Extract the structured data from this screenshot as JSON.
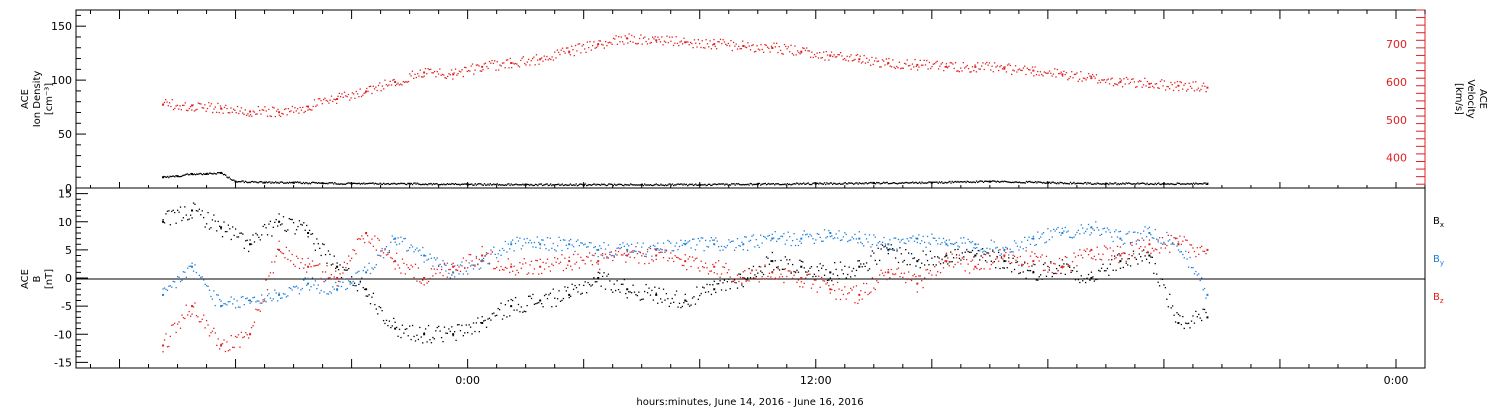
{
  "chart_data": [
    {
      "type": "scatter",
      "panel": "top",
      "ylabel_left": [
        "ACE",
        "Ion Density",
        "[cm⁻³]"
      ],
      "ylabel_right": [
        "ACE",
        "Velocity",
        "[km/s]"
      ],
      "ylim_left": [
        0,
        165
      ],
      "ylim_right": [
        320,
        790
      ],
      "yticks_left": [
        0,
        50,
        100,
        150
      ],
      "yticks_right": [
        400,
        500,
        600,
        700
      ],
      "series": [
        {
          "axis": "left",
          "color": "#000000",
          "x_hours": [
            -10.5,
            -10,
            -9.5,
            -9,
            -8.5,
            -8,
            -7,
            -6,
            -5,
            -4,
            -2,
            0,
            2,
            4,
            6,
            8,
            10,
            12,
            14,
            16,
            18,
            20,
            22,
            24,
            25.5
          ],
          "values": [
            10,
            11,
            13,
            13,
            14,
            6,
            5,
            5,
            4.5,
            4,
            4,
            3.5,
            3,
            3,
            3,
            3,
            3.5,
            4,
            4.5,
            5,
            6,
            5,
            4,
            4,
            4
          ]
        },
        {
          "axis": "right",
          "color": "#e02020",
          "x_hours": [
            -10.5,
            -9.5,
            -8.5,
            -7.5,
            -6.5,
            -5.5,
            -4.5,
            -3.5,
            -2.5,
            -1.5,
            -0.5,
            0.5,
            1.5,
            2.5,
            3.5,
            4.5,
            5.5,
            6.5,
            7.5,
            8.5,
            9.5,
            10.5,
            11.5,
            12.5,
            13.5,
            14.5,
            15.5,
            16.5,
            17.5,
            18.5,
            19.5,
            20.5,
            21.5,
            22.5,
            23.5,
            24.5,
            25.5
          ],
          "values": [
            540,
            538,
            530,
            522,
            520,
            535,
            555,
            575,
            600,
            625,
            620,
            640,
            650,
            660,
            680,
            700,
            715,
            710,
            705,
            700,
            695,
            690,
            680,
            670,
            660,
            650,
            645,
            640,
            640,
            635,
            630,
            620,
            610,
            600,
            595,
            590,
            585
          ]
        }
      ]
    },
    {
      "type": "scatter",
      "panel": "bottom",
      "ylabel_left": [
        "ACE",
        "B",
        "[nT]"
      ],
      "ylim": [
        -16,
        16
      ],
      "yticks": [
        -15,
        -10,
        -5,
        0,
        5,
        10,
        15
      ],
      "legend": [
        "Bx",
        "By",
        "Bz"
      ],
      "legend_placement": "right",
      "series": [
        {
          "name": "Bx",
          "color": "#000000",
          "x_hours": [
            -10.5,
            -9.5,
            -8.5,
            -7.5,
            -6.5,
            -5.5,
            -4.5,
            -3.5,
            -2.5,
            -1.5,
            -0.5,
            0.5,
            1.5,
            2.5,
            3.5,
            4.5,
            5.5,
            6.5,
            7.5,
            8.5,
            9.5,
            10.5,
            11.5,
            12.5,
            13.5,
            14.5,
            15.5,
            16.5,
            17.5,
            18.5,
            19.5,
            20.5,
            21.5,
            22.5,
            23.5,
            24.5,
            25.5
          ],
          "values": [
            10,
            12,
            9,
            6,
            10,
            8,
            2,
            -2,
            -9,
            -10,
            -10,
            -8,
            -5,
            -4,
            -3,
            0,
            -2,
            -3,
            -4,
            -2,
            0,
            3,
            2,
            1,
            2,
            5,
            3,
            4,
            4,
            3,
            1,
            2,
            0,
            3,
            4,
            -8,
            -7
          ]
        },
        {
          "name": "By",
          "color": "#1f7fd8",
          "x_hours": [
            -10.5,
            -9.5,
            -8.5,
            -7.5,
            -6.5,
            -5.5,
            -4.5,
            -3.5,
            -2.5,
            -1.5,
            -0.5,
            0.5,
            1.5,
            2.5,
            3.5,
            4.5,
            5.5,
            6.5,
            7.5,
            8.5,
            9.5,
            10.5,
            11.5,
            12.5,
            13.5,
            14.5,
            15.5,
            16.5,
            17.5,
            18.5,
            19.5,
            20.5,
            21.5,
            22.5,
            23.5,
            24.5,
            25.5
          ],
          "values": [
            -3,
            2,
            -5,
            -4,
            -3,
            -1,
            -2,
            1,
            7,
            4,
            1,
            3,
            6,
            6,
            6,
            5,
            5,
            5,
            6,
            6,
            6,
            7,
            7,
            8,
            7,
            6,
            7,
            6,
            6,
            5,
            7,
            8,
            9,
            7,
            8,
            6,
            -3
          ]
        },
        {
          "name": "Bz",
          "color": "#e02020",
          "x_hours": [
            -10.5,
            -9.5,
            -8.5,
            -7.5,
            -6.5,
            -5.5,
            -4.5,
            -3.5,
            -2.5,
            -1.5,
            -0.5,
            0.5,
            1.5,
            2.5,
            3.5,
            4.5,
            5.5,
            6.5,
            7.5,
            8.5,
            9.5,
            10.5,
            11.5,
            12.5,
            13.5,
            14.5,
            15.5,
            16.5,
            17.5,
            18.5,
            19.5,
            20.5,
            21.5,
            22.5,
            23.5,
            24.5,
            25.5
          ],
          "values": [
            -12,
            -5,
            -12,
            -10,
            5,
            2,
            0,
            8,
            3,
            0,
            2,
            4,
            2,
            2,
            3,
            3,
            4,
            4,
            3,
            2,
            0,
            1,
            0,
            -2,
            -3,
            1,
            -1,
            3,
            2,
            4,
            3,
            2,
            5,
            4,
            6,
            6,
            5
          ]
        }
      ]
    }
  ],
  "x_axis": {
    "range_hours": [
      -13.5,
      33
    ],
    "ticks": [
      {
        "hour": -12,
        "label": ""
      },
      {
        "hour": -8,
        "label": ""
      },
      {
        "hour": -4,
        "label": ""
      },
      {
        "hour": 0,
        "label": "0:00"
      },
      {
        "hour": 4,
        "label": ""
      },
      {
        "hour": 8,
        "label": ""
      },
      {
        "hour": 12,
        "label": "12:00"
      },
      {
        "hour": 16,
        "label": ""
      },
      {
        "hour": 20,
        "label": ""
      },
      {
        "hour": 24,
        "label": ""
      },
      {
        "hour": 28,
        "label": ""
      },
      {
        "hour": 32,
        "label": "0:00"
      }
    ],
    "xlabel": "hours:minutes, June 14, 2016 - June 16, 2016"
  },
  "labels": {
    "top_left": [
      "ACE",
      "Ion Density",
      "[cm⁻³]"
    ],
    "top_right": [
      "ACE",
      "Velocity",
      "[km/s]"
    ],
    "bottom_left": [
      "ACE",
      "B",
      "[nT]"
    ],
    "legend": [
      {
        "main": "B",
        "sub": "x",
        "color": "#000000"
      },
      {
        "main": "B",
        "sub": "y",
        "color": "#1f7fd8"
      },
      {
        "main": "B",
        "sub": "z",
        "color": "#e02020"
      }
    ]
  },
  "colors": {
    "black": "#000000",
    "blue": "#1f7fd8",
    "red": "#e02020"
  }
}
